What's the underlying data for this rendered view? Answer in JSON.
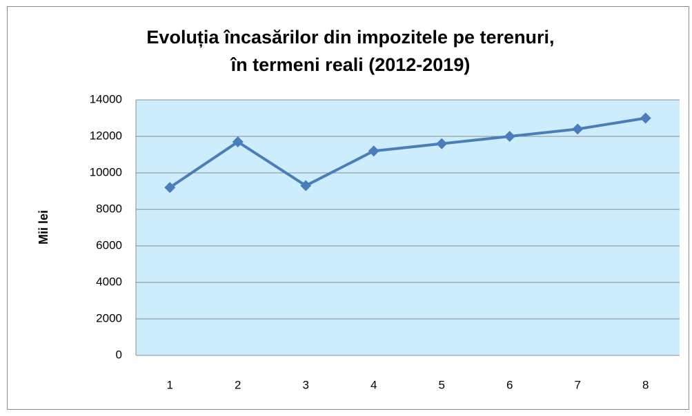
{
  "chart_data": {
    "type": "line",
    "title": [
      "Evoluția încasărilor din impozitele pe terenuri,",
      "în termeni reali (2012-2019)"
    ],
    "y_label": "Mii lei",
    "categories": [
      "1",
      "2",
      "3",
      "4",
      "5",
      "6",
      "7",
      "8"
    ],
    "values": [
      9200,
      11700,
      9300,
      11200,
      11600,
      12000,
      12400,
      13000
    ],
    "color": "#4a7ebb",
    "ylim": [
      0,
      14000
    ],
    "yticks": [
      0,
      2000,
      4000,
      6000,
      8000,
      10000,
      12000,
      14000
    ],
    "grid": true,
    "marker": "diamond"
  }
}
